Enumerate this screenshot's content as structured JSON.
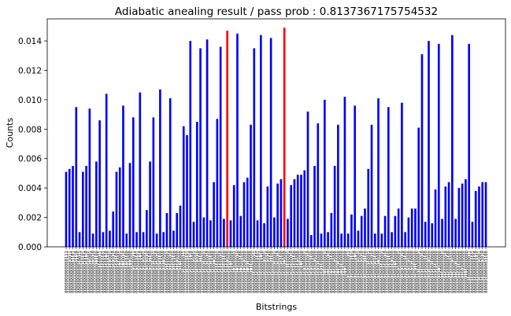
{
  "chart_data": {
    "type": "bar",
    "title": "Adiabatic anealing result / pass prob : 0.8137367175754532",
    "xlabel": "Bitstrings",
    "ylabel": "Counts",
    "ylim": [
      0,
      0.0155
    ],
    "yticks": [
      0.0,
      0.002,
      0.004,
      0.006,
      0.008,
      0.01,
      0.012,
      0.014
    ],
    "ytick_labels": [
      "0.000",
      "0.002",
      "0.004",
      "0.006",
      "0.008",
      "0.010",
      "0.012",
      "0.014"
    ],
    "grid": false,
    "colors": {
      "default": "#0000ff",
      "highlight": "#ff0000"
    },
    "bars": [
      {
        "label": "0000000000000111",
        "value": 0.0051
      },
      {
        "label": "0000000000001011",
        "value": 0.0053
      },
      {
        "label": "0000000000001101",
        "value": 0.0055
      },
      {
        "label": "0000000000001110",
        "value": 0.0095
      },
      {
        "label": "0000000000010011",
        "value": 0.001
      },
      {
        "label": "0000000000010101",
        "value": 0.0051
      },
      {
        "label": "0000000000010110",
        "value": 0.0055
      },
      {
        "label": "0000000000011001",
        "value": 0.0094
      },
      {
        "label": "0000000000011010",
        "value": 0.0009
      },
      {
        "label": "0000000000011100",
        "value": 0.0058
      },
      {
        "label": "0000000000100011",
        "value": 0.0086
      },
      {
        "label": "0000000000100101",
        "value": 0.001
      },
      {
        "label": "0000000000100110",
        "value": 0.0104
      },
      {
        "label": "0000000000101001",
        "value": 0.0011
      },
      {
        "label": "0000000000101010",
        "value": 0.0024
      },
      {
        "label": "0000000000101100",
        "value": 0.0051
      },
      {
        "label": "0000000000110001",
        "value": 0.0054
      },
      {
        "label": "0000000000110010",
        "value": 0.0096
      },
      {
        "label": "0000000000110100",
        "value": 0.0009
      },
      {
        "label": "0000000000111000",
        "value": 0.0057
      },
      {
        "label": "0000000001000011",
        "value": 0.0088
      },
      {
        "label": "0000000001000101",
        "value": 0.001
      },
      {
        "label": "0000000001000110",
        "value": 0.0105
      },
      {
        "label": "0000000001001001",
        "value": 0.001
      },
      {
        "label": "0000000001001010",
        "value": 0.0025
      },
      {
        "label": "0000000001001100",
        "value": 0.0058
      },
      {
        "label": "0000000001010001",
        "value": 0.0088
      },
      {
        "label": "0000000001010010",
        "value": 0.0009
      },
      {
        "label": "0000000001010100",
        "value": 0.0107
      },
      {
        "label": "0000000001011000",
        "value": 0.001
      },
      {
        "label": "0000000001100001",
        "value": 0.0023
      },
      {
        "label": "0000000001100010",
        "value": 0.0101
      },
      {
        "label": "0000000001100100",
        "value": 0.0011
      },
      {
        "label": "0000000001101000",
        "value": 0.0023
      },
      {
        "label": "0000000001110000",
        "value": 0.0028
      },
      {
        "label": "0000000010000011",
        "value": 0.0082
      },
      {
        "label": "0000000010000101",
        "value": 0.0076
      },
      {
        "label": "0000000010000110",
        "value": 0.014
      },
      {
        "label": "0000000010001001",
        "value": 0.0017
      },
      {
        "label": "0000000010001010",
        "value": 0.0085
      },
      {
        "label": "0000000010001100",
        "value": 0.0135
      },
      {
        "label": "0000000010010001",
        "value": 0.002
      },
      {
        "label": "0000000010010010",
        "value": 0.0141
      },
      {
        "label": "0000000010010100",
        "value": 0.0018
      },
      {
        "label": "0000000010011000",
        "value": 0.0044
      },
      {
        "label": "0000000010100001",
        "value": 0.0087
      },
      {
        "label": "0000000010100010",
        "value": 0.0136
      },
      {
        "label": "0000000010100100",
        "value": 0.0019
      },
      {
        "label": "0000000010101000",
        "value": 0.0147,
        "highlight": true
      },
      {
        "label": "0000000010110000",
        "value": 0.0018
      },
      {
        "label": "0000000011000001",
        "value": 0.0042
      },
      {
        "label": "0000000011000010",
        "value": 0.0145
      },
      {
        "label": "0000000011000100",
        "value": 0.0021
      },
      {
        "label": "0000000011001000",
        "value": 0.0044
      },
      {
        "label": "0000000011010000",
        "value": 0.0047
      },
      {
        "label": "0000000011100000",
        "value": 0.0083
      },
      {
        "label": "0000000100000011",
        "value": 0.0135
      },
      {
        "label": "0000000100000101",
        "value": 0.0018
      },
      {
        "label": "0000000100000110",
        "value": 0.0144
      },
      {
        "label": "0000000100001001",
        "value": 0.0016
      },
      {
        "label": "0000000100001010",
        "value": 0.0041
      },
      {
        "label": "0000000100001100",
        "value": 0.0142
      },
      {
        "label": "0000000100010001",
        "value": 0.002
      },
      {
        "label": "0000000100010010",
        "value": 0.0043
      },
      {
        "label": "0000000100010100",
        "value": 0.0046
      },
      {
        "label": "0000000100011000",
        "value": 0.0149,
        "highlight": true
      },
      {
        "label": "0000000100100001",
        "value": 0.0019
      },
      {
        "label": "0000000100100010",
        "value": 0.0042
      },
      {
        "label": "0000000100100100",
        "value": 0.0046
      },
      {
        "label": "0000000100101000",
        "value": 0.0049
      },
      {
        "label": "0000000100110000",
        "value": 0.0049
      },
      {
        "label": "0000000101000001",
        "value": 0.0052
      },
      {
        "label": "0000000101000010",
        "value": 0.0092
      },
      {
        "label": "0000000101000100",
        "value": 0.0008
      },
      {
        "label": "0000000101001000",
        "value": 0.0055
      },
      {
        "label": "0000000101010000",
        "value": 0.0084
      },
      {
        "label": "0000000101100000",
        "value": 0.0009
      },
      {
        "label": "0000000110000001",
        "value": 0.01
      },
      {
        "label": "0000000110000010",
        "value": 0.001
      },
      {
        "label": "0000000110000100",
        "value": 0.0023
      },
      {
        "label": "0000000110001000",
        "value": 0.0055
      },
      {
        "label": "0000000110010000",
        "value": 0.0083
      },
      {
        "label": "0000000110100000",
        "value": 0.0009
      },
      {
        "label": "0000000111000000",
        "value": 0.0102
      },
      {
        "label": "0000001000000011",
        "value": 0.0009
      },
      {
        "label": "0000001000000101",
        "value": 0.0022
      },
      {
        "label": "0000001000000110",
        "value": 0.0096
      },
      {
        "label": "0000001000001001",
        "value": 0.0011
      },
      {
        "label": "0000001000001010",
        "value": 0.0021
      },
      {
        "label": "0000001000001100",
        "value": 0.0026
      },
      {
        "label": "0000001000010001",
        "value": 0.0053
      },
      {
        "label": "0000001000010010",
        "value": 0.0083
      },
      {
        "label": "0000001000010100",
        "value": 0.0009
      },
      {
        "label": "0000001000011000",
        "value": 0.0101
      },
      {
        "label": "0000001000100001",
        "value": 0.0009
      },
      {
        "label": "0000001000100010",
        "value": 0.0021
      },
      {
        "label": "0000001000100100",
        "value": 0.0095
      },
      {
        "label": "0000001000101000",
        "value": 0.001
      },
      {
        "label": "0000001000110000",
        "value": 0.0021
      },
      {
        "label": "0000001001000001",
        "value": 0.0026
      },
      {
        "label": "0000001001000010",
        "value": 0.0098
      },
      {
        "label": "0000001001000100",
        "value": 0.001
      },
      {
        "label": "0000001001001000",
        "value": 0.002
      },
      {
        "label": "0000001001010000",
        "value": 0.0026
      },
      {
        "label": "0000001001100000",
        "value": 0.0026
      },
      {
        "label": "0000001010000001",
        "value": 0.0081
      },
      {
        "label": "0000001010000010",
        "value": 0.0131
      },
      {
        "label": "0000001010000100",
        "value": 0.0017
      },
      {
        "label": "0000001010001000",
        "value": 0.014
      },
      {
        "label": "0000001010010000",
        "value": 0.0016
      },
      {
        "label": "0000001010100000",
        "value": 0.0039
      },
      {
        "label": "0000001011000000",
        "value": 0.0138
      },
      {
        "label": "0000001100000001",
        "value": 0.0019
      },
      {
        "label": "0000001100000010",
        "value": 0.0041
      },
      {
        "label": "0000001100000100",
        "value": 0.0044
      },
      {
        "label": "0000001100001000",
        "value": 0.0144
      },
      {
        "label": "0000001100010000",
        "value": 0.0019
      },
      {
        "label": "0000001100100000",
        "value": 0.004
      },
      {
        "label": "0000001101000000",
        "value": 0.0043
      },
      {
        "label": "0000001110000000",
        "value": 0.0046
      },
      {
        "label": "0000010000000011",
        "value": 0.0138
      },
      {
        "label": "0000010000000101",
        "value": 0.0017
      },
      {
        "label": "0000010000000110",
        "value": 0.0038
      },
      {
        "label": "0000010000001001",
        "value": 0.0041
      },
      {
        "label": "0000010000001010",
        "value": 0.0044
      },
      {
        "label": "0000010000001100",
        "value": 0.0044
      }
    ]
  }
}
